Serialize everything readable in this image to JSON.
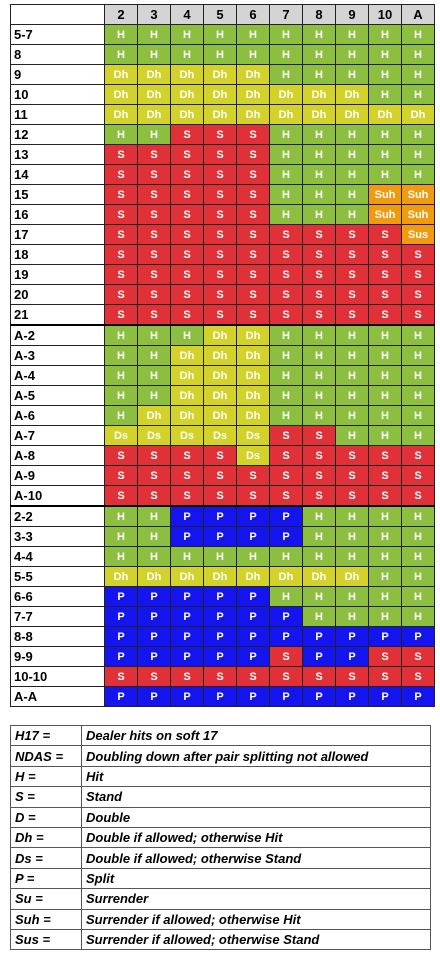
{
  "colors": {
    "H": "#8cbf3f",
    "Dh": "#d2d22a",
    "Ds": "#d2d22a",
    "S": "#e03038",
    "P": "#1414ee",
    "Suh": "#f09a10",
    "Sus": "#f09a10"
  },
  "dealer_cards": [
    "2",
    "3",
    "4",
    "5",
    "6",
    "7",
    "8",
    "9",
    "10",
    "A"
  ],
  "sections": [
    [
      {
        "label": "5-7",
        "actions": [
          "H",
          "H",
          "H",
          "H",
          "H",
          "H",
          "H",
          "H",
          "H",
          "H"
        ]
      },
      {
        "label": "8",
        "actions": [
          "H",
          "H",
          "H",
          "H",
          "H",
          "H",
          "H",
          "H",
          "H",
          "H"
        ]
      },
      {
        "label": "9",
        "actions": [
          "Dh",
          "Dh",
          "Dh",
          "Dh",
          "Dh",
          "H",
          "H",
          "H",
          "H",
          "H"
        ]
      },
      {
        "label": "10",
        "actions": [
          "Dh",
          "Dh",
          "Dh",
          "Dh",
          "Dh",
          "Dh",
          "Dh",
          "Dh",
          "H",
          "H"
        ]
      },
      {
        "label": "11",
        "actions": [
          "Dh",
          "Dh",
          "Dh",
          "Dh",
          "Dh",
          "Dh",
          "Dh",
          "Dh",
          "Dh",
          "Dh"
        ]
      },
      {
        "label": "12",
        "actions": [
          "H",
          "H",
          "S",
          "S",
          "S",
          "H",
          "H",
          "H",
          "H",
          "H"
        ]
      },
      {
        "label": "13",
        "actions": [
          "S",
          "S",
          "S",
          "S",
          "S",
          "H",
          "H",
          "H",
          "H",
          "H"
        ]
      },
      {
        "label": "14",
        "actions": [
          "S",
          "S",
          "S",
          "S",
          "S",
          "H",
          "H",
          "H",
          "H",
          "H"
        ]
      },
      {
        "label": "15",
        "actions": [
          "S",
          "S",
          "S",
          "S",
          "S",
          "H",
          "H",
          "H",
          "Suh",
          "Suh"
        ]
      },
      {
        "label": "16",
        "actions": [
          "S",
          "S",
          "S",
          "S",
          "S",
          "H",
          "H",
          "H",
          "Suh",
          "Suh"
        ]
      },
      {
        "label": "17",
        "actions": [
          "S",
          "S",
          "S",
          "S",
          "S",
          "S",
          "S",
          "S",
          "S",
          "Sus"
        ]
      },
      {
        "label": "18",
        "actions": [
          "S",
          "S",
          "S",
          "S",
          "S",
          "S",
          "S",
          "S",
          "S",
          "S"
        ]
      },
      {
        "label": "19",
        "actions": [
          "S",
          "S",
          "S",
          "S",
          "S",
          "S",
          "S",
          "S",
          "S",
          "S"
        ]
      },
      {
        "label": "20",
        "actions": [
          "S",
          "S",
          "S",
          "S",
          "S",
          "S",
          "S",
          "S",
          "S",
          "S"
        ]
      },
      {
        "label": "21",
        "actions": [
          "S",
          "S",
          "S",
          "S",
          "S",
          "S",
          "S",
          "S",
          "S",
          "S"
        ]
      }
    ],
    [
      {
        "label": "A-2",
        "actions": [
          "H",
          "H",
          "H",
          "Dh",
          "Dh",
          "H",
          "H",
          "H",
          "H",
          "H"
        ]
      },
      {
        "label": "A-3",
        "actions": [
          "H",
          "H",
          "Dh",
          "Dh",
          "Dh",
          "H",
          "H",
          "H",
          "H",
          "H"
        ]
      },
      {
        "label": "A-4",
        "actions": [
          "H",
          "H",
          "Dh",
          "Dh",
          "Dh",
          "H",
          "H",
          "H",
          "H",
          "H"
        ]
      },
      {
        "label": "A-5",
        "actions": [
          "H",
          "H",
          "Dh",
          "Dh",
          "Dh",
          "H",
          "H",
          "H",
          "H",
          "H"
        ]
      },
      {
        "label": "A-6",
        "actions": [
          "H",
          "Dh",
          "Dh",
          "Dh",
          "Dh",
          "H",
          "H",
          "H",
          "H",
          "H"
        ]
      },
      {
        "label": "A-7",
        "actions": [
          "Ds",
          "Ds",
          "Ds",
          "Ds",
          "Ds",
          "S",
          "S",
          "H",
          "H",
          "H"
        ]
      },
      {
        "label": "A-8",
        "actions": [
          "S",
          "S",
          "S",
          "S",
          "Ds",
          "S",
          "S",
          "S",
          "S",
          "S"
        ]
      },
      {
        "label": "A-9",
        "actions": [
          "S",
          "S",
          "S",
          "S",
          "S",
          "S",
          "S",
          "S",
          "S",
          "S"
        ]
      },
      {
        "label": "A-10",
        "actions": [
          "S",
          "S",
          "S",
          "S",
          "S",
          "S",
          "S",
          "S",
          "S",
          "S"
        ]
      }
    ],
    [
      {
        "label": "2-2",
        "actions": [
          "H",
          "H",
          "P",
          "P",
          "P",
          "P",
          "H",
          "H",
          "H",
          "H"
        ]
      },
      {
        "label": "3-3",
        "actions": [
          "H",
          "H",
          "P",
          "P",
          "P",
          "P",
          "H",
          "H",
          "H",
          "H"
        ]
      },
      {
        "label": "4-4",
        "actions": [
          "H",
          "H",
          "H",
          "H",
          "H",
          "H",
          "H",
          "H",
          "H",
          "H"
        ]
      },
      {
        "label": "5-5",
        "actions": [
          "Dh",
          "Dh",
          "Dh",
          "Dh",
          "Dh",
          "Dh",
          "Dh",
          "Dh",
          "H",
          "H"
        ]
      },
      {
        "label": "6-6",
        "actions": [
          "P",
          "P",
          "P",
          "P",
          "P",
          "H",
          "H",
          "H",
          "H",
          "H"
        ]
      },
      {
        "label": "7-7",
        "actions": [
          "P",
          "P",
          "P",
          "P",
          "P",
          "P",
          "H",
          "H",
          "H",
          "H"
        ]
      },
      {
        "label": "8-8",
        "actions": [
          "P",
          "P",
          "P",
          "P",
          "P",
          "P",
          "P",
          "P",
          "P",
          "P"
        ]
      },
      {
        "label": "9-9",
        "actions": [
          "P",
          "P",
          "P",
          "P",
          "P",
          "S",
          "P",
          "P",
          "S",
          "S"
        ]
      },
      {
        "label": "10-10",
        "actions": [
          "S",
          "S",
          "S",
          "S",
          "S",
          "S",
          "S",
          "S",
          "S",
          "S"
        ]
      },
      {
        "label": "A-A",
        "actions": [
          "P",
          "P",
          "P",
          "P",
          "P",
          "P",
          "P",
          "P",
          "P",
          "P"
        ]
      }
    ]
  ],
  "legend": [
    {
      "abbr": "H17 =",
      "desc": "Dealer hits on soft 17"
    },
    {
      "abbr": "NDAS =",
      "desc": "Doubling down after pair splitting not allowed"
    },
    {
      "abbr": "H =",
      "desc": "Hit"
    },
    {
      "abbr": "S =",
      "desc": "Stand"
    },
    {
      "abbr": "D =",
      "desc": "Double"
    },
    {
      "abbr": "Dh =",
      "desc": "Double if allowed; otherwise Hit"
    },
    {
      "abbr": "Ds =",
      "desc": "Double if allowed; otherwise Stand"
    },
    {
      "abbr": "P =",
      "desc": "Split"
    },
    {
      "abbr": "Su =",
      "desc": "Surrender"
    },
    {
      "abbr": "Suh =",
      "desc": "Surrender if allowed; otherwise Hit"
    },
    {
      "abbr": "Sus =",
      "desc": "Surrender if allowed; otherwise Stand"
    }
  ]
}
